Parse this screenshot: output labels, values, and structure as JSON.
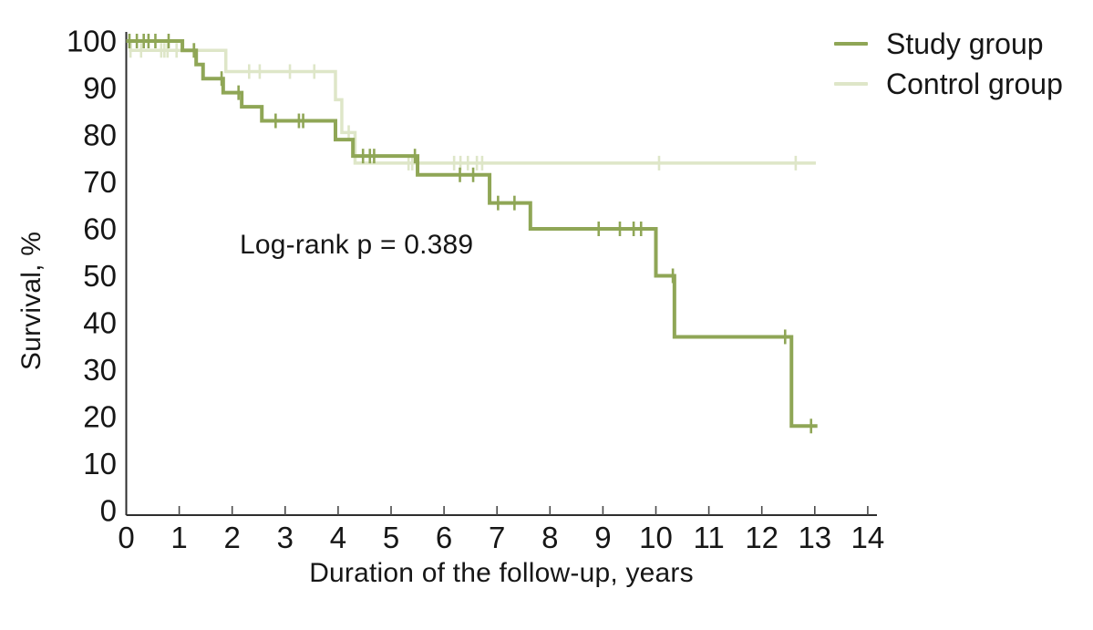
{
  "chart_data": {
    "type": "line",
    "subtype": "kaplan-meier-step",
    "title": "",
    "xlabel": "Duration of the follow-up, years",
    "ylabel": "Survival, %",
    "annotation": "Log-rank p = 0.389",
    "xlim": [
      0,
      14.2
    ],
    "ylim": [
      0,
      100
    ],
    "xticks": [
      0,
      1,
      2,
      3,
      4,
      5,
      6,
      7,
      8,
      9,
      10,
      11,
      12,
      13,
      14
    ],
    "yticks": [
      0,
      10,
      20,
      30,
      40,
      50,
      60,
      70,
      80,
      90,
      100
    ],
    "grid": false,
    "legend_position": "top-right",
    "axis_color": "#2e2e2e",
    "series": [
      {
        "name": "Study group",
        "color": "#8FA656",
        "steps": [
          [
            0,
            100
          ],
          [
            1.06,
            98
          ],
          [
            1.32,
            95
          ],
          [
            1.45,
            92
          ],
          [
            1.83,
            89
          ],
          [
            2.18,
            86
          ],
          [
            2.56,
            83
          ],
          [
            3.95,
            79
          ],
          [
            4.28,
            75.5
          ],
          [
            5.5,
            71.5
          ],
          [
            6.86,
            65.5
          ],
          [
            7.63,
            60
          ],
          [
            10.0,
            50
          ],
          [
            10.35,
            37
          ],
          [
            12.56,
            18
          ]
        ],
        "end_time": 13.05,
        "censor_times": [
          0.06,
          0.2,
          0.33,
          0.42,
          0.55,
          0.8,
          1.28,
          1.8,
          2.12,
          2.82,
          3.26,
          3.34,
          4.47,
          4.6,
          4.68,
          5.45,
          6.3,
          6.55,
          7.02,
          7.33,
          8.92,
          9.32,
          9.58,
          9.72,
          10.32,
          12.44,
          12.93
        ]
      },
      {
        "name": "Control group",
        "color": "#DEE6C8",
        "steps": [
          [
            0,
            100
          ],
          [
            0.08,
            98
          ],
          [
            1.88,
            93.5
          ],
          [
            3.95,
            87.5
          ],
          [
            4.07,
            80.5
          ],
          [
            4.32,
            74
          ]
        ],
        "end_time": 13.02,
        "censor_times": [
          0.08,
          0.28,
          0.66,
          0.72,
          0.78,
          0.95,
          1.27,
          2.32,
          2.52,
          3.09,
          3.55,
          4.2,
          5.33,
          5.4,
          6.19,
          6.31,
          6.45,
          6.62,
          6.72,
          10.06,
          12.64
        ]
      }
    ]
  }
}
